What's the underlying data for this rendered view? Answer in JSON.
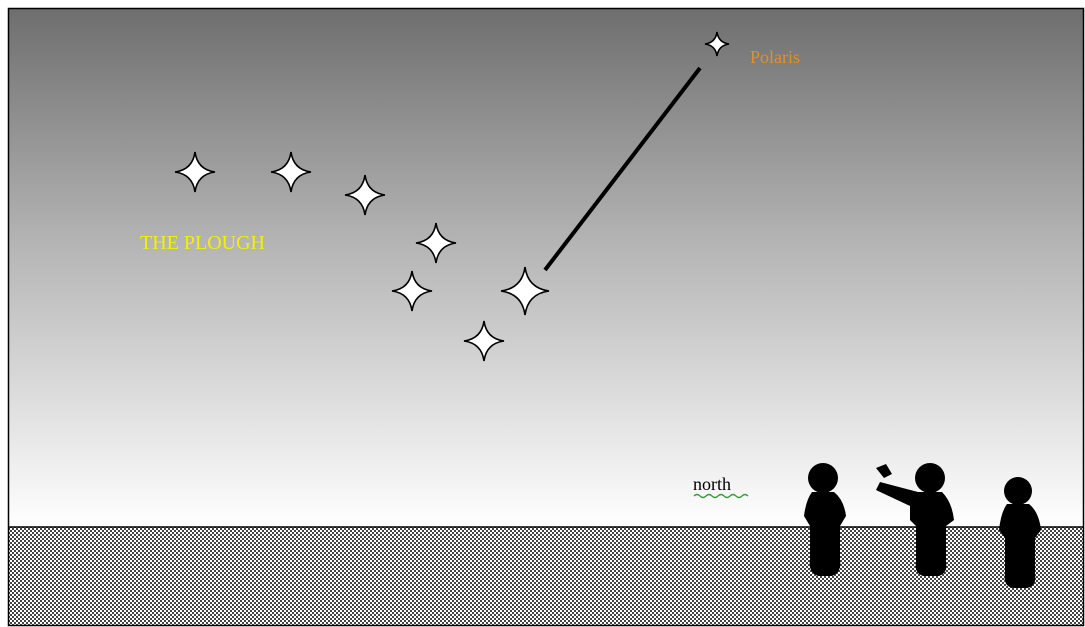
{
  "diagram": {
    "labels": {
      "constellation": "THE PLOUGH",
      "star": "Polaris",
      "direction": "north"
    }
  }
}
